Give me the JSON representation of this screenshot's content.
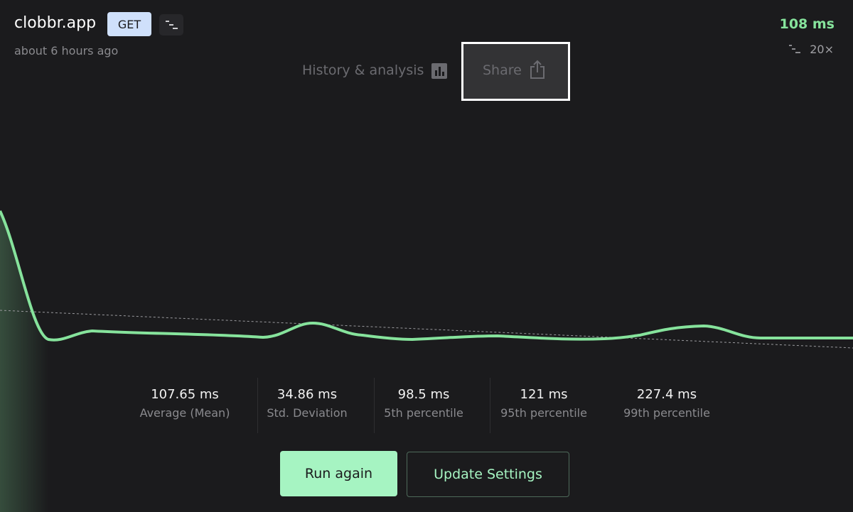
{
  "header": {
    "host": "clobbr.app",
    "method": "GET",
    "time": "about 6 hours ago",
    "latency": "108 ms",
    "iterations": "20×"
  },
  "tabs": [
    "History & analysis",
    "Share"
  ],
  "stats": [
    {
      "value": "107.65 ms",
      "label": "Average (Mean)"
    },
    {
      "value": "34.86 ms",
      "label": "Std. Deviation"
    },
    {
      "value": "98.5 ms",
      "label": "5th percentile"
    },
    {
      "value": "121 ms",
      "label": "95th percentile"
    },
    {
      "value": "227.4 ms",
      "label": "99th percentile"
    }
  ],
  "buttons": [
    "Run again",
    "Update Settings"
  ]
}
